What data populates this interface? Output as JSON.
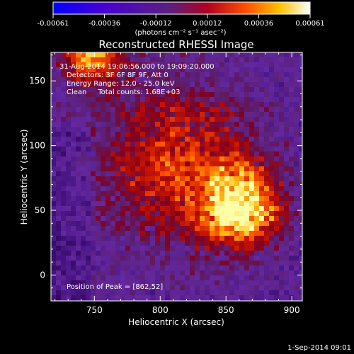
{
  "colorbar": {
    "ticks": [
      "-0.00061",
      "-0.00036",
      "-0.00012",
      "0.00012",
      "0.00036",
      "0.00061"
    ],
    "unit_label": "(photons cm⁻² s⁻¹ asec⁻²)",
    "colors": [
      "#0000ff",
      "#5a00c8",
      "#8c00a0",
      "#ff0000",
      "#ff8c00",
      "#ffff80",
      "#ffffff"
    ]
  },
  "chart_data": {
    "type": "heatmap",
    "title": "Reconstructed RHESSI Image",
    "xlabel": "Heliocentric X (arcsec)",
    "ylabel": "Heliocentric Y (arcsec)",
    "xlim": [
      717,
      908
    ],
    "ylim": [
      -20,
      172
    ],
    "xticks": [
      750,
      800,
      850,
      900
    ],
    "yticks": [
      0,
      50,
      100,
      150
    ],
    "peak": [
      862,
      52
    ],
    "annotations": [
      "31-Aug-2014 19:06:56.000 to 19:09:20.000",
      "Detectors: 3F 6F 8F 9F, Att 0",
      "Energy Range: 12.0 - 25.0 keV",
      "Clean     Total counts: 1.68E+03"
    ],
    "peak_label": "Position of Peak = [862,52]",
    "grid": false
  },
  "footer": {
    "timestamp": "1-Sep-2014 09:01"
  }
}
